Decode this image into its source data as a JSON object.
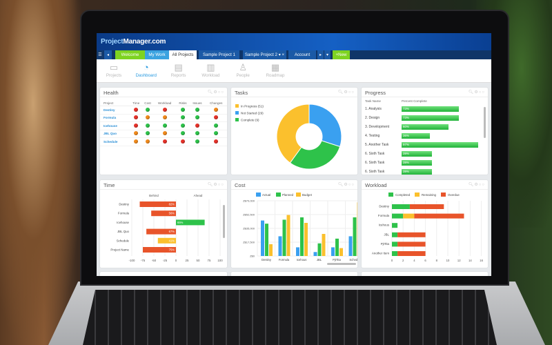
{
  "app": {
    "logo_prefix": "Project",
    "logo_suffix": "Manager.com"
  },
  "tabs": [
    {
      "label": "☰",
      "name": "menu-button",
      "bg": "#123a6e"
    },
    {
      "label": "◂",
      "name": "tabs-prev-button",
      "bg": "#1b5aa6"
    },
    {
      "label": "Welcome",
      "name": "tab-welcome",
      "bg": "#7ed321"
    },
    {
      "label": "My Work",
      "name": "tab-my-work",
      "bg": "#3ba3e0"
    },
    {
      "label": "All Projects",
      "name": "tab-all-projects",
      "bg": "#ffffff",
      "active": true
    },
    {
      "label": "Sample Project 1",
      "name": "tab-sample-project-1",
      "bg": "#1b5aa6"
    },
    {
      "label": "Sample Project 2 ▾ ×",
      "name": "tab-sample-project-2",
      "bg": "#1b5aa6"
    },
    {
      "label": "Account",
      "name": "tab-account",
      "bg": "#1b5aa6"
    },
    {
      "label": "▸",
      "name": "tabs-next-button",
      "bg": "#1b5aa6"
    },
    {
      "label": "▾",
      "name": "tabs-dropdown-button",
      "bg": "#1b5aa6"
    },
    {
      "label": "+New",
      "name": "new-button",
      "bg": "#7ed321"
    }
  ],
  "nav": [
    {
      "label": "Projects",
      "icon": "folder-icon",
      "glyph": "▭"
    },
    {
      "label": "Dashboard",
      "icon": "gauge-icon",
      "glyph": "◔",
      "active": true
    },
    {
      "label": "Reports",
      "icon": "report-icon",
      "glyph": "▤"
    },
    {
      "label": "Workload",
      "icon": "clipboard-icon",
      "glyph": "▥"
    },
    {
      "label": "People",
      "icon": "person-icon",
      "glyph": "♙"
    },
    {
      "label": "Roadmap",
      "icon": "roadmap-icon",
      "glyph": "▦"
    }
  ],
  "colors": {
    "red": "#e5322a",
    "green": "#2ec24a",
    "orange": "#f08a1c",
    "yellow": "#fbc02d",
    "blue": "#3aa0f0"
  },
  "health": {
    "title": "Health",
    "columns": [
      "Project",
      "Time",
      "Cost",
      "Workload",
      "Risks",
      "Issues",
      "Changes"
    ],
    "rows": [
      {
        "project": "Destiny",
        "status": [
          "red",
          "green",
          "red",
          "green",
          "green",
          "orange"
        ]
      },
      {
        "project": "Formula",
        "status": [
          "red",
          "orange",
          "orange",
          "green",
          "green",
          "red"
        ]
      },
      {
        "project": "Icehouse",
        "status": [
          "red",
          "green",
          "green",
          "green",
          "red",
          "green"
        ]
      },
      {
        "project": "JBL Quo",
        "status": [
          "orange",
          "green",
          "orange",
          "green",
          "green",
          "green"
        ]
      },
      {
        "project": "Schedule",
        "status": [
          "orange",
          "orange",
          "red",
          "red",
          "green",
          "red"
        ]
      }
    ]
  },
  "tasks": {
    "title": "Tasks",
    "legend": [
      {
        "label": "In Progress (51)",
        "color": "#fbc02d"
      },
      {
        "label": "Not Started (29)",
        "color": "#3aa0f0"
      },
      {
        "label": "Complete (9)",
        "color": "#2ec24a"
      }
    ]
  },
  "progress": {
    "title": "Progress",
    "col_task": "Task Name",
    "col_pct": "Percent Complete",
    "rows": [
      {
        "task": "1. Analysis",
        "pct": 73
      },
      {
        "task": "2. Design",
        "pct": 73
      },
      {
        "task": "3. Development",
        "pct": 60
      },
      {
        "task": "4. Testing",
        "pct": 36
      },
      {
        "task": "5. Another Task",
        "pct": 97
      },
      {
        "task": "6. Sixth Task",
        "pct": 39
      },
      {
        "task": "6. Sixth Task",
        "pct": 39
      },
      {
        "task": "6. Sixth Task",
        "pct": 39
      }
    ]
  },
  "chart_data": [
    {
      "type": "bar",
      "orientation": "horizontal",
      "title": "Time",
      "xlim": [
        -100,
        100
      ],
      "xticks": [
        "-100",
        "-75",
        "-50",
        "-25",
        "0",
        "25",
        "50",
        "75",
        "100"
      ],
      "annotations": [
        "Behind",
        "Ahead"
      ],
      "categories": [
        "Destiny",
        "Formula",
        "Icehouse",
        "JBL Quo",
        "Schedule",
        "Project Name"
      ],
      "values": [
        -82,
        -56,
        65,
        -67,
        -41,
        -75
      ],
      "labels": [
        "82%",
        "56%",
        "65%",
        "67%",
        "41%",
        "75%"
      ],
      "bar_colors": [
        "#e8542a",
        "#e8542a",
        "#2ec24a",
        "#e8542a",
        "#fbc02d",
        "#e8542a"
      ]
    },
    {
      "type": "bar",
      "title": "Cost",
      "ylim": [
        0,
        70000
      ],
      "yticks": [
        "Z$0",
        "Z$17,500",
        "Z$35,000",
        "Z$52,500",
        "Z$70,000"
      ],
      "categories": [
        "Destiny",
        "Formula",
        "Icehous",
        "JBL",
        "PjtTita",
        "Schedu"
      ],
      "series": [
        {
          "name": "Actual",
          "color": "#3aa0f0",
          "values": [
            45000,
            25000,
            11000,
            5000,
            11000,
            25000
          ]
        },
        {
          "name": "Planned",
          "color": "#2ec24a",
          "values": [
            41000,
            46000,
            49000,
            16000,
            22000,
            49000
          ]
        },
        {
          "name": "Budget",
          "color": "#fbc02d",
          "values": [
            15000,
            52000,
            42000,
            28000,
            10000,
            68000
          ]
        }
      ]
    },
    {
      "type": "bar",
      "orientation": "horizontal",
      "stacked": true,
      "title": "Workload",
      "xlim": [
        0,
        16
      ],
      "xticks": [
        "0",
        "2",
        "4",
        "6",
        "8",
        "10",
        "12",
        "14",
        "16"
      ],
      "categories": [
        "Destiny",
        "Formula",
        "Icehous",
        "JBL",
        "PjtTita",
        "Another Item"
      ],
      "series": [
        {
          "name": "Completed",
          "color": "#2ec24a",
          "values": [
            3.2,
            2,
            1,
            1,
            1,
            1
          ]
        },
        {
          "name": "Remaining",
          "color": "#fbc02d",
          "values": [
            0,
            2,
            0,
            0,
            0,
            0
          ]
        },
        {
          "name": "Overdue",
          "color": "#e8542a",
          "values": [
            6.1,
            8.9,
            0,
            5,
            5,
            5
          ]
        }
      ]
    }
  ]
}
